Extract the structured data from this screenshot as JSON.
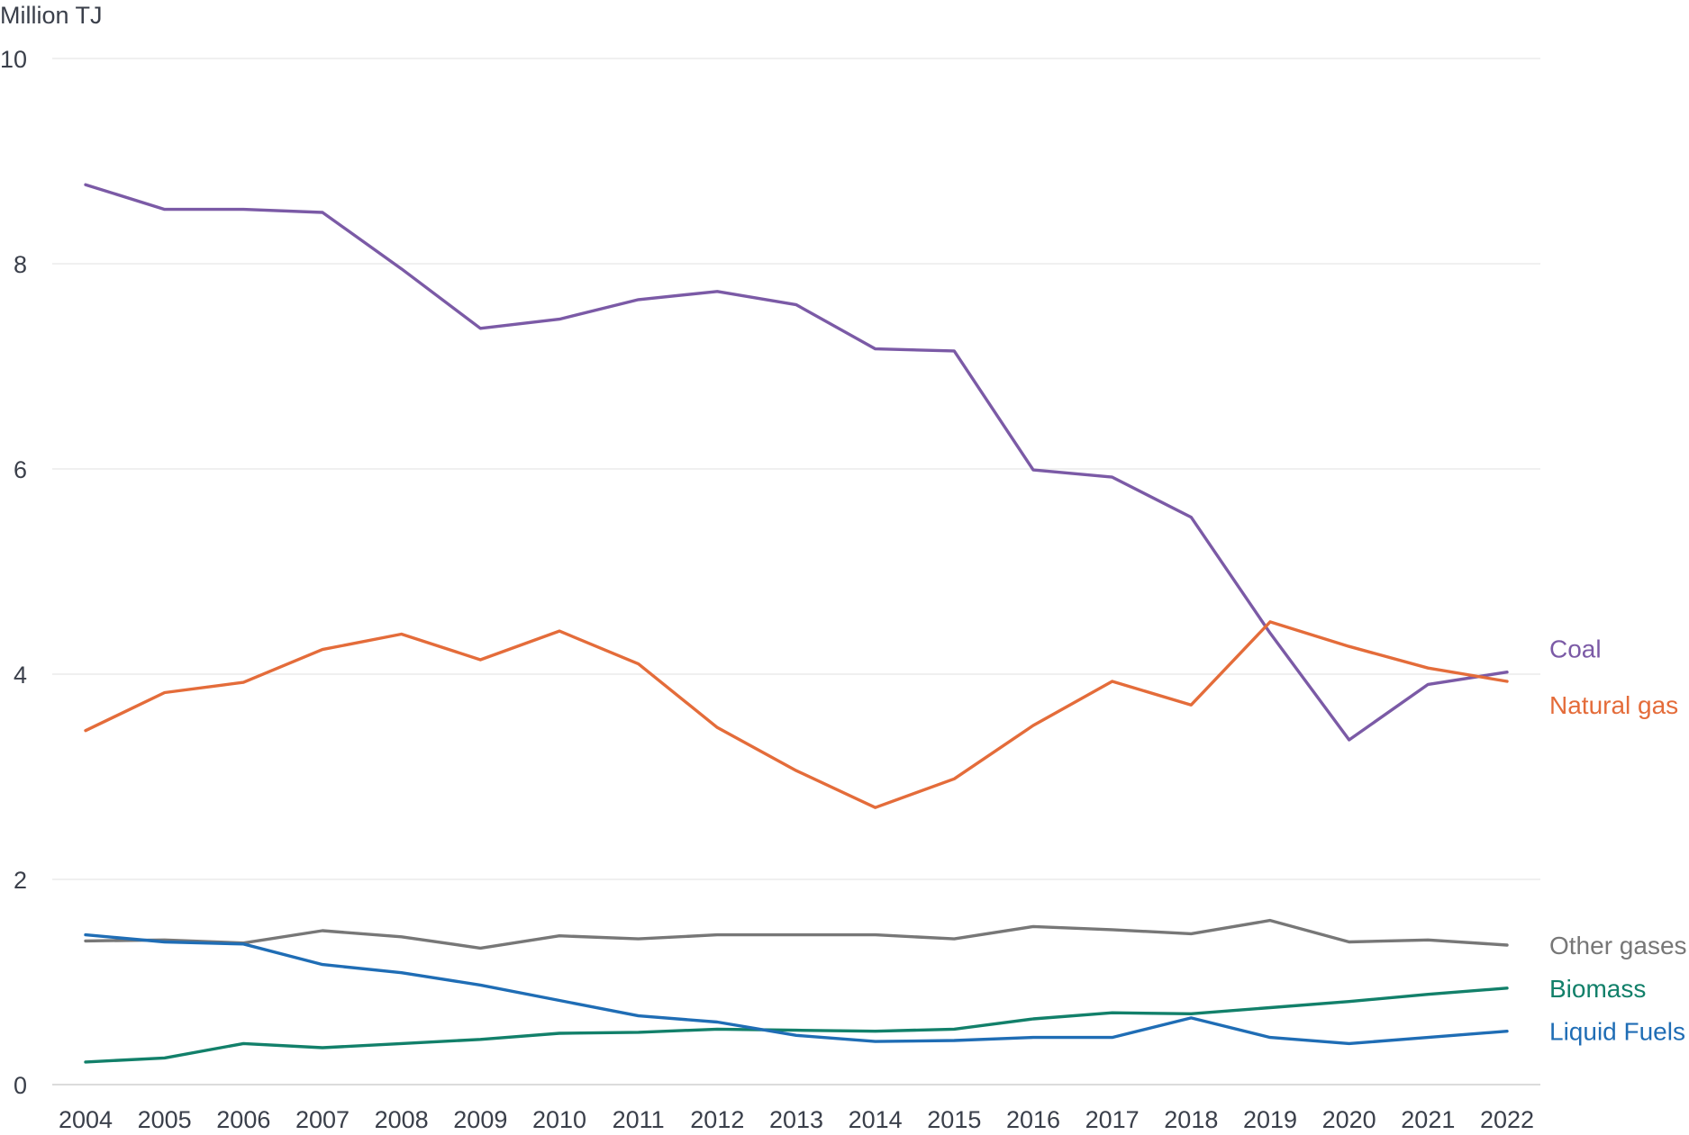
{
  "chart_data": {
    "type": "line",
    "ylabel": "Million TJ",
    "ylim": [
      0,
      10
    ],
    "yticks": [
      0,
      2,
      4,
      6,
      8,
      10
    ],
    "grid": true,
    "legend": "right-end labels",
    "x": [
      "2004",
      "2005",
      "2006",
      "2007",
      "2008",
      "2009",
      "2010",
      "2011",
      "2012",
      "2013",
      "2014",
      "2015",
      "2016",
      "2017",
      "2018",
      "2019",
      "2020",
      "2021",
      "2022"
    ],
    "series": [
      {
        "name": "Coal",
        "color": "#7b5aa6",
        "values": [
          8.77,
          8.53,
          8.53,
          8.5,
          7.95,
          7.37,
          7.46,
          7.65,
          7.73,
          7.6,
          7.17,
          7.15,
          5.99,
          5.92,
          5.53,
          4.4,
          3.36,
          3.9,
          4.02
        ]
      },
      {
        "name": "Natural gas",
        "color": "#e46c3a",
        "values": [
          3.45,
          3.82,
          3.92,
          4.24,
          4.39,
          4.14,
          4.42,
          4.1,
          3.48,
          3.06,
          2.7,
          2.98,
          3.5,
          3.93,
          3.7,
          4.51,
          4.27,
          4.06,
          3.93
        ]
      },
      {
        "name": "Other gases",
        "color": "#777777",
        "values": [
          1.4,
          1.41,
          1.38,
          1.5,
          1.44,
          1.33,
          1.45,
          1.42,
          1.46,
          1.46,
          1.46,
          1.42,
          1.54,
          1.51,
          1.47,
          1.6,
          1.39,
          1.41,
          1.36
        ]
      },
      {
        "name": "Biomass",
        "color": "#12806a",
        "values": [
          0.22,
          0.26,
          0.4,
          0.36,
          0.4,
          0.44,
          0.5,
          0.51,
          0.54,
          0.53,
          0.52,
          0.54,
          0.64,
          0.7,
          0.69,
          0.75,
          0.81,
          0.88,
          0.94
        ]
      },
      {
        "name": "Liquid Fuels",
        "color": "#1f6db5",
        "values": [
          1.46,
          1.39,
          1.37,
          1.17,
          1.09,
          0.97,
          0.82,
          0.67,
          0.61,
          0.48,
          0.42,
          0.43,
          0.46,
          0.46,
          0.65,
          0.46,
          0.4,
          0.46,
          0.52
        ]
      }
    ]
  }
}
